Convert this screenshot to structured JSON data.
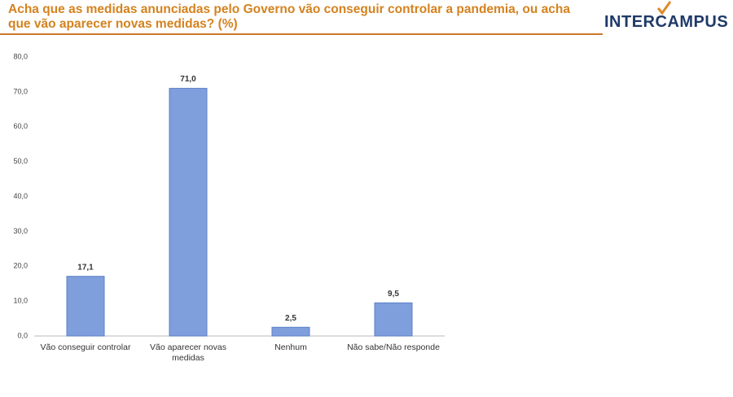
{
  "logo": "INTERCAMPUS",
  "chart_data": {
    "type": "bar",
    "title": "Acha que as medidas anunciadas pelo Governo vão conseguir controlar a pandemia, ou acha que vão aparecer novas medidas? (%)",
    "categories": [
      "Vão conseguir controlar",
      "Vão aparecer novas medidas",
      "Nenhum",
      "Não sabe/Não responde"
    ],
    "values": [
      17.1,
      71.0,
      2.5,
      9.5
    ],
    "value_labels": [
      "17,1",
      "71,0",
      "2,5",
      "9,5"
    ],
    "color": "#7f9fdc",
    "ylim": [
      0,
      80
    ],
    "yticks": [
      {
        "value": 0,
        "label": "0,0"
      },
      {
        "value": 10,
        "label": "10,0"
      },
      {
        "value": 20,
        "label": "20,0"
      },
      {
        "value": 30,
        "label": "30,0"
      },
      {
        "value": 40,
        "label": "40,0"
      },
      {
        "value": 50,
        "label": "50,0"
      },
      {
        "value": 60,
        "label": "60,0"
      },
      {
        "value": 70,
        "label": "70,0"
      },
      {
        "value": 80,
        "label": "80,0"
      }
    ],
    "grid": false
  }
}
